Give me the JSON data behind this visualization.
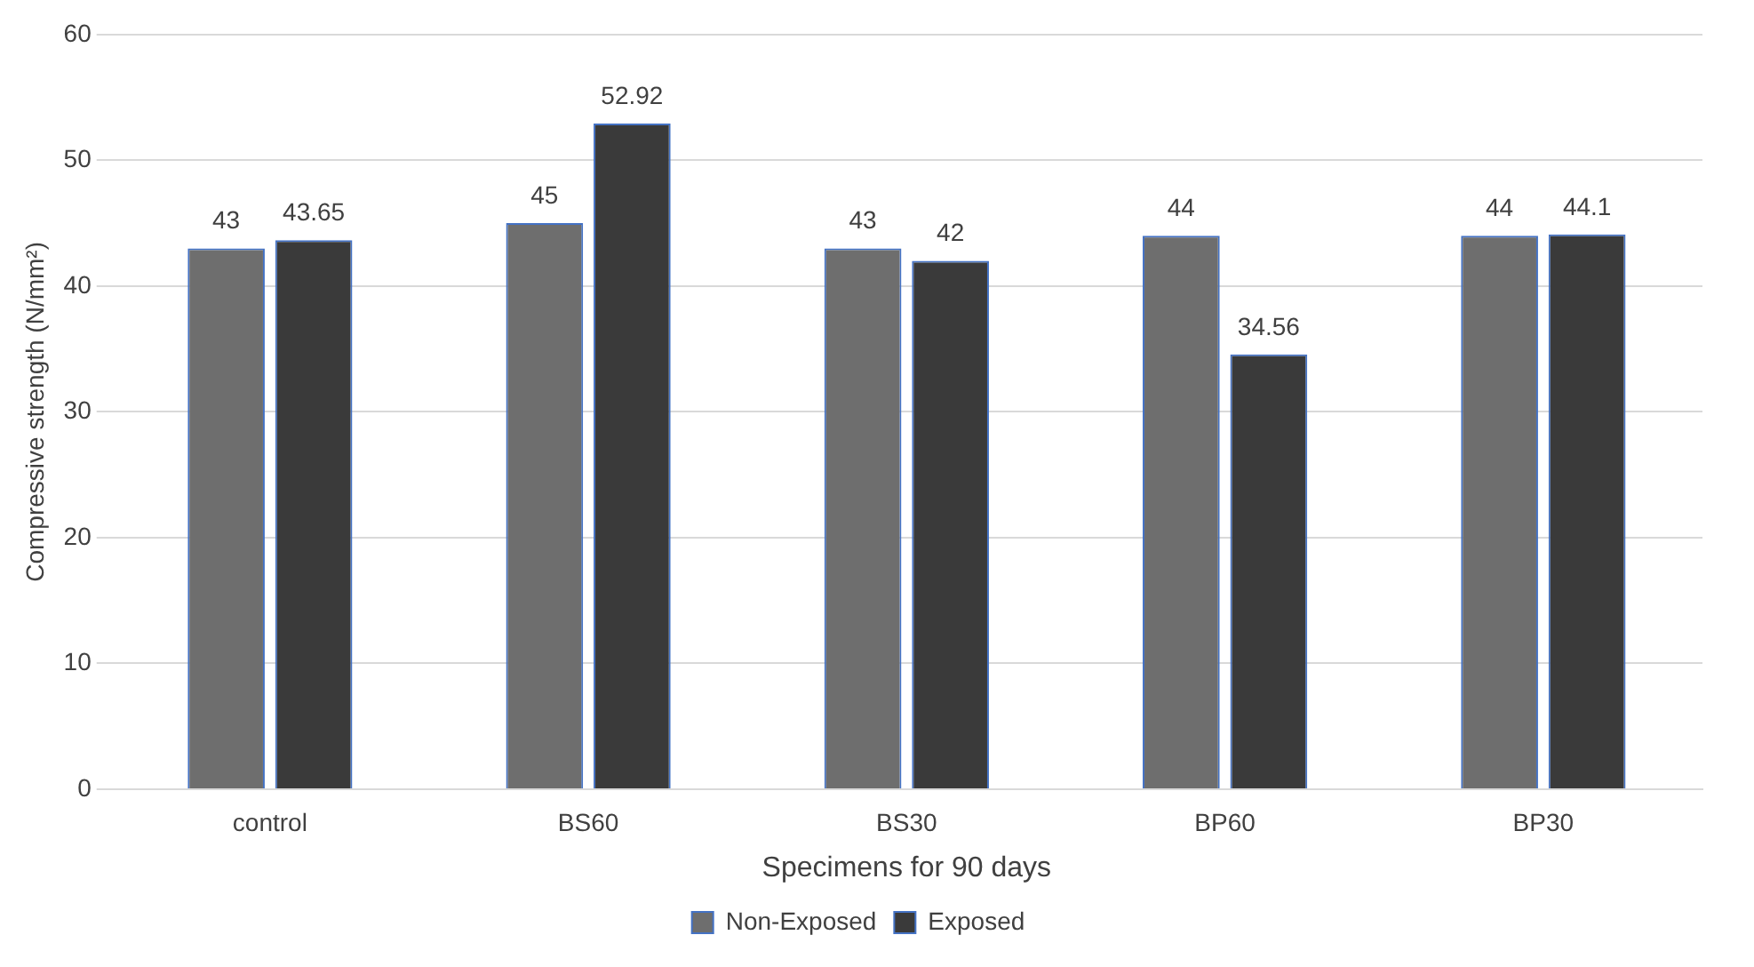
{
  "chart_data": {
    "type": "bar",
    "xlabel": "Specimens for 90 days",
    "ylabel": "Compressive strength (N/mm²)",
    "categories": [
      "control",
      "BS60",
      "BS30",
      "BP60",
      "BP30"
    ],
    "series": [
      {
        "name": "Non-Exposed",
        "color": "#6e6e6e",
        "values": [
          43,
          45,
          43,
          44,
          44
        ]
      },
      {
        "name": "Exposed",
        "color": "#3a3a3a",
        "values": [
          43.65,
          52.92,
          42,
          34.56,
          44.1
        ]
      }
    ],
    "ylim": [
      0,
      60
    ],
    "yticks": [
      0,
      10,
      20,
      30,
      40,
      50,
      60
    ],
    "grid": "y",
    "legend": "bottom",
    "data_labels": true
  }
}
